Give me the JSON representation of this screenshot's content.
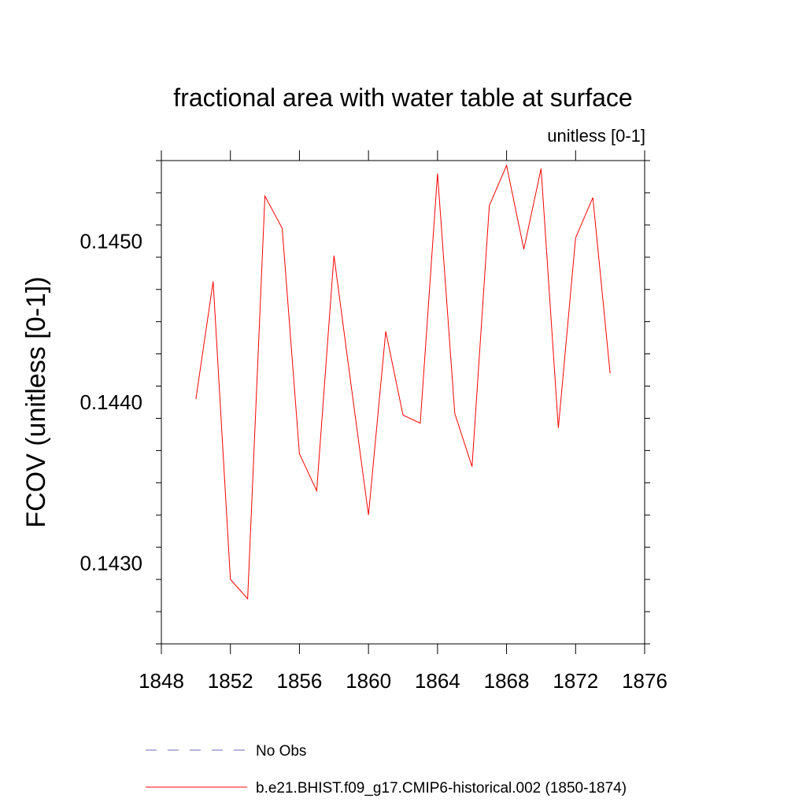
{
  "chart_data": {
    "type": "line",
    "title": "fractional area with water table at surface",
    "units_label": "unitless [0-1]",
    "ylabel": "FCOV  (unitless [0-1])",
    "xlabel": "",
    "xlim": [
      1848,
      1876
    ],
    "ylim": [
      0.1425,
      0.1455
    ],
    "x_ticks": [
      1848,
      1852,
      1856,
      1860,
      1864,
      1868,
      1872,
      1876
    ],
    "x_tick_labels": [
      "1848",
      "1852",
      "1856",
      "1860",
      "1864",
      "1868",
      "1872",
      "1876"
    ],
    "y_ticks": [
      0.143,
      0.144,
      0.145
    ],
    "y_tick_labels": [
      "0.1430",
      "0.1440",
      "0.1450"
    ],
    "y_minor_step": 0.0002,
    "x": [
      1850,
      1851,
      1852,
      1853,
      1854,
      1855,
      1856,
      1857,
      1858,
      1859,
      1860,
      1861,
      1862,
      1863,
      1864,
      1865,
      1866,
      1867,
      1868,
      1869,
      1870,
      1871,
      1872,
      1873,
      1874
    ],
    "series": [
      {
        "name": "b.e21.BHIST.f09_g17.CMIP6-historical.002 (1850-1874)",
        "color": "#ff0000",
        "style": "solid",
        "values": [
          0.14402,
          0.14475,
          0.1429,
          0.14278,
          0.14528,
          0.14508,
          0.14368,
          0.14345,
          0.14491,
          0.1441,
          0.1433,
          0.14444,
          0.14392,
          0.14387,
          0.14542,
          0.14393,
          0.1436,
          0.14522,
          0.14547,
          0.14495,
          0.14545,
          0.14384,
          0.14502,
          0.14527,
          0.14418
        ]
      }
    ],
    "legend": [
      {
        "label": "No Obs",
        "color": "#6b6bb8",
        "style": "dashed"
      },
      {
        "label": "b.e21.BHIST.f09_g17.CMIP6-historical.002 (1850-1874)",
        "color": "#ff0000",
        "style": "solid"
      }
    ],
    "legend_position": "bottom"
  }
}
